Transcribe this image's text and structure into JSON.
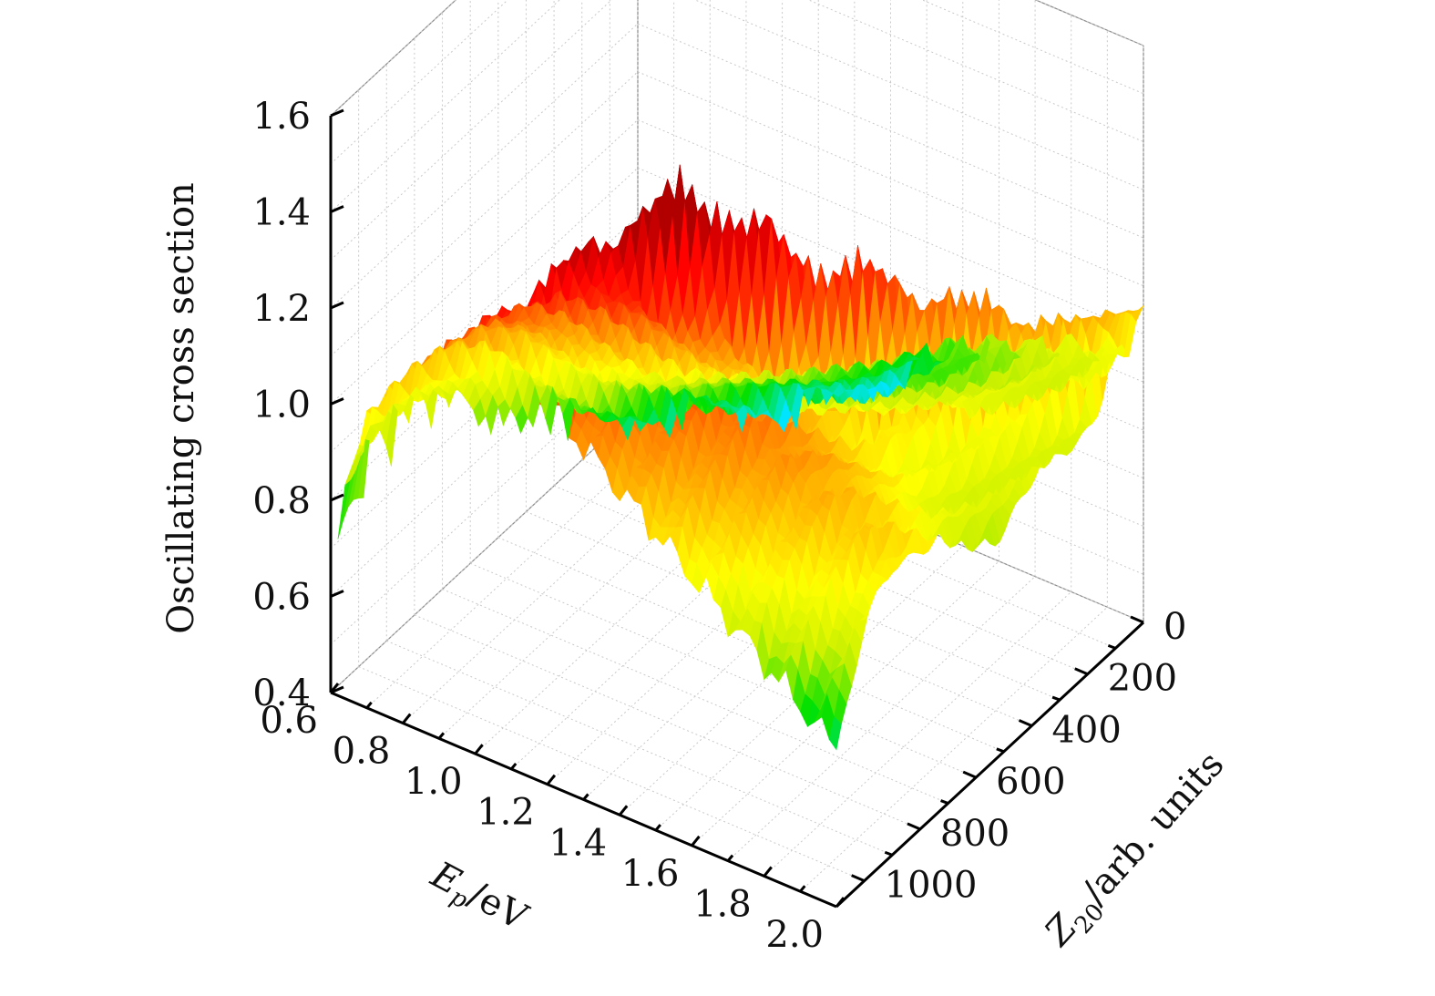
{
  "chart_data": {
    "type": "surface",
    "xlabel": "E_p/eV",
    "ylabel": "Z_20/arb. units",
    "zlabel": "Oscillating cross section",
    "xlim": [
      0.6,
      2.0
    ],
    "ylim": [
      0,
      1100
    ],
    "zlim": [
      0.4,
      1.6
    ],
    "x_ticks": [
      "0.6",
      "0.8",
      "1.0",
      "1.2",
      "1.4",
      "1.6",
      "1.8",
      "2.0"
    ],
    "y_ticks": [
      "0",
      "200",
      "400",
      "600",
      "800",
      "1000"
    ],
    "z_ticks": [
      "0.4",
      "0.6",
      "0.8",
      "1.0",
      "1.2",
      "1.4",
      "1.6"
    ],
    "grid": true,
    "colormap": [
      "#00e5ff",
      "#00e000",
      "#c8f000",
      "#ffff00",
      "#ffc000",
      "#ff8000",
      "#ff3000",
      "#ff0000",
      "#b00000"
    ],
    "surface_profiles": [
      {
        "z20": 1100,
        "ep_start": 0.62,
        "low": 0.72,
        "high": 1.28,
        "peak_ep": 1.05,
        "peak": 1.33
      },
      {
        "z20": 1000,
        "ep_start": 0.62,
        "low": 0.76,
        "high": 1.3,
        "peak_ep": 1.15,
        "peak": 1.4
      },
      {
        "z20": 900,
        "ep_start": 0.65,
        "low": 0.78,
        "high": 1.32,
        "peak_ep": 1.25,
        "peak": 1.48
      },
      {
        "z20": 800,
        "ep_start": 0.7,
        "low": 0.8,
        "high": 1.25,
        "peak_ep": 1.35,
        "peak": 1.55
      },
      {
        "z20": 700,
        "ep_start": 0.78,
        "low": 0.75,
        "high": 1.15,
        "peak_ep": 1.45,
        "peak": 1.45
      },
      {
        "z20": 600,
        "ep_start": 0.85,
        "low": 0.72,
        "high": 1.05,
        "peak_ep": 1.55,
        "peak": 1.35
      },
      {
        "z20": 500,
        "ep_start": 0.92,
        "low": 0.7,
        "high": 1.0,
        "peak_ep": 1.65,
        "peak": 1.3
      },
      {
        "z20": 400,
        "ep_start": 1.0,
        "low": 0.68,
        "high": 0.98,
        "peak_ep": 1.75,
        "peak": 1.22
      },
      {
        "z20": 300,
        "ep_start": 1.08,
        "low": 0.66,
        "high": 0.96,
        "peak_ep": 1.85,
        "peak": 1.18
      },
      {
        "z20": 200,
        "ep_start": 1.16,
        "low": 0.64,
        "high": 0.95,
        "peak_ep": 1.92,
        "peak": 1.12
      },
      {
        "z20": 100,
        "ep_start": 1.24,
        "low": 0.62,
        "high": 0.94,
        "peak_ep": 1.98,
        "peak": 1.08
      },
      {
        "z20": 0,
        "ep_start": 1.3,
        "low": 0.62,
        "high": 0.95,
        "peak_ep": 2.0,
        "peak": 1.05
      }
    ]
  }
}
